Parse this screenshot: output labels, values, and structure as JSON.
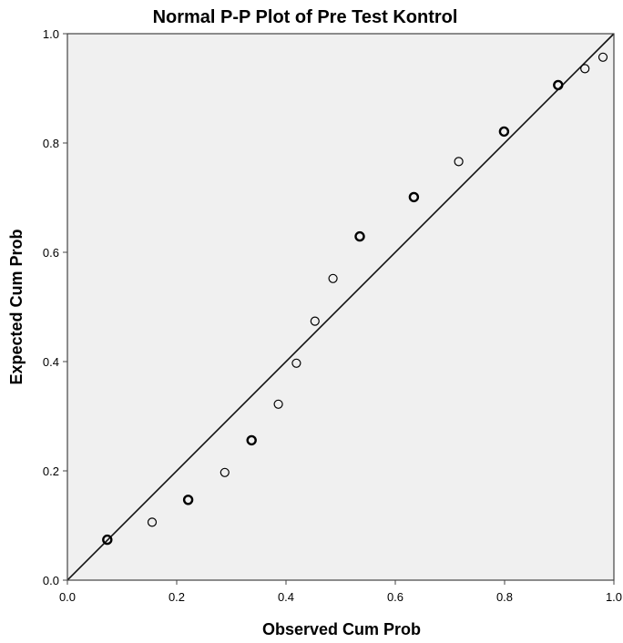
{
  "chart_data": {
    "type": "scatter",
    "title": "Normal P-P Plot of Pre Test Kontrol",
    "xlabel": "Observed Cum Prob",
    "ylabel": "Expected Cum Prob",
    "xlim": [
      0.0,
      1.0
    ],
    "ylim": [
      0.0,
      1.0
    ],
    "x_ticks": [
      "0.0",
      "0.2",
      "0.4",
      "0.6",
      "0.8",
      "1.0"
    ],
    "y_ticks": [
      "0.0",
      "0.2",
      "0.4",
      "0.6",
      "0.8",
      "1.0"
    ],
    "reference_line": {
      "from": [
        0.0,
        0.0
      ],
      "to": [
        1.0,
        1.0
      ]
    },
    "grid": false,
    "plot_background": "#f0f0f0",
    "marker_color": "#000000",
    "points": [
      {
        "x": 0.073,
        "y": 0.074,
        "bold": true
      },
      {
        "x": 0.155,
        "y": 0.106,
        "bold": false
      },
      {
        "x": 0.221,
        "y": 0.147,
        "bold": true
      },
      {
        "x": 0.288,
        "y": 0.197,
        "bold": false
      },
      {
        "x": 0.337,
        "y": 0.256,
        "bold": true
      },
      {
        "x": 0.386,
        "y": 0.322,
        "bold": false
      },
      {
        "x": 0.419,
        "y": 0.397,
        "bold": false
      },
      {
        "x": 0.453,
        "y": 0.474,
        "bold": false
      },
      {
        "x": 0.486,
        "y": 0.552,
        "bold": false
      },
      {
        "x": 0.535,
        "y": 0.629,
        "bold": true
      },
      {
        "x": 0.634,
        "y": 0.701,
        "bold": true
      },
      {
        "x": 0.716,
        "y": 0.766,
        "bold": false
      },
      {
        "x": 0.799,
        "y": 0.821,
        "bold": true
      },
      {
        "x": 0.898,
        "y": 0.906,
        "bold": true
      },
      {
        "x": 0.947,
        "y": 0.936,
        "bold": false
      },
      {
        "x": 0.98,
        "y": 0.957,
        "bold": false
      }
    ]
  }
}
